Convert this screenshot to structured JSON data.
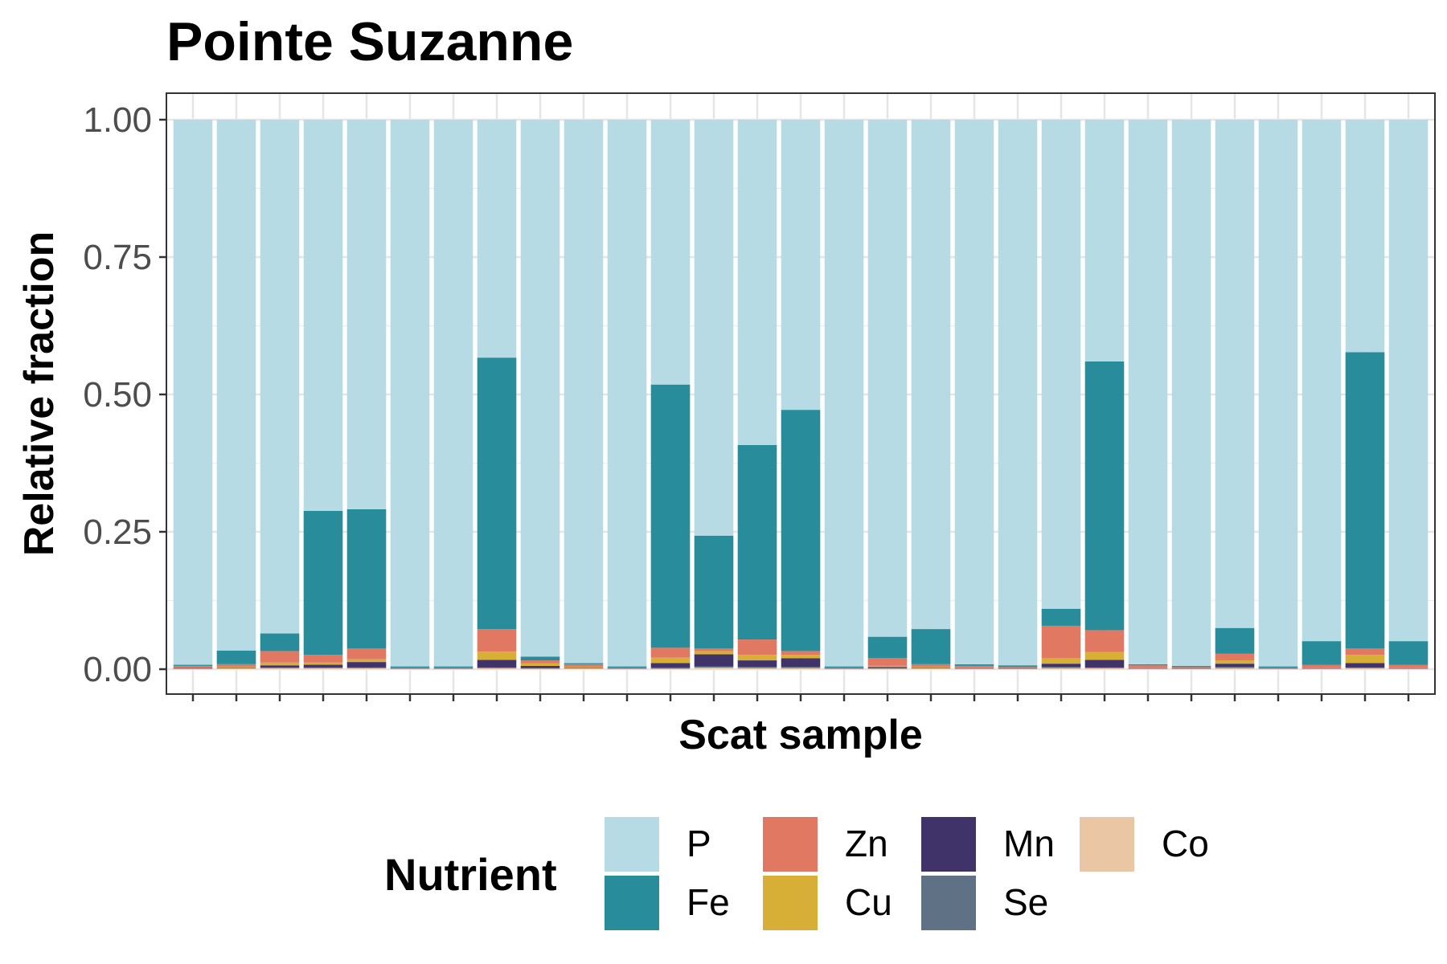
{
  "chart_data": {
    "type": "bar",
    "stacked": true,
    "title": "Pointe Suzanne",
    "xlabel": "Scat sample",
    "ylabel": "Relative fraction",
    "ylim": [
      0,
      1
    ],
    "y_ticks": [
      "0.00",
      "0.25",
      "0.50",
      "0.75",
      "1.00"
    ],
    "y_tick_values": [
      0,
      0.25,
      0.5,
      0.75,
      1
    ],
    "x_tick_labels_shown": false,
    "grid": true,
    "legend_title": "Nutrient",
    "legend_position": "bottom",
    "num_samples": 29,
    "series": [
      {
        "name": "P",
        "color": "#b6dbe5",
        "values": [
          0.992,
          0.966,
          0.935,
          0.712,
          0.709,
          0.995,
          0.995,
          0.433,
          0.977,
          0.989,
          0.995,
          0.482,
          0.757,
          0.592,
          0.528,
          0.995,
          0.941,
          0.927,
          0.991,
          0.993,
          0.89,
          0.44,
          0.991,
          0.994,
          0.925,
          0.995,
          0.949,
          0.423,
          0.949
        ]
      },
      {
        "name": "Fe",
        "color": "#288c9b",
        "values": [
          0.002,
          0.025,
          0.032,
          0.262,
          0.253,
          0.002,
          0.002,
          0.494,
          0.007,
          0.002,
          0.002,
          0.479,
          0.205,
          0.354,
          0.439,
          0.002,
          0.039,
          0.064,
          0.003,
          0.003,
          0.031,
          0.489,
          0.002,
          0.002,
          0.047,
          0.002,
          0.043,
          0.539,
          0.043
        ]
      },
      {
        "name": "Zn",
        "color": "#e07862",
        "values": [
          0.004,
          0.005,
          0.021,
          0.014,
          0.02,
          0.001,
          0.001,
          0.041,
          0.005,
          0.005,
          0.001,
          0.018,
          0.005,
          0.028,
          0.007,
          0.001,
          0.014,
          0.005,
          0.003,
          0.002,
          0.059,
          0.04,
          0.004,
          0.002,
          0.012,
          0.001,
          0.005,
          0.012,
          0.005
        ]
      },
      {
        "name": "Cu",
        "color": "#d8af36",
        "values": [
          0.0,
          0.001,
          0.005,
          0.004,
          0.005,
          0.0,
          0.0,
          0.015,
          0.005,
          0.001,
          0.0,
          0.01,
          0.006,
          0.01,
          0.006,
          0.0,
          0.002,
          0.001,
          0.001,
          0.0,
          0.01,
          0.014,
          0.001,
          0.0,
          0.006,
          0.0,
          0.001,
          0.015,
          0.001
        ]
      },
      {
        "name": "Mn",
        "color": "#40336a",
        "values": [
          0.001,
          0.001,
          0.004,
          0.005,
          0.01,
          0.001,
          0.001,
          0.014,
          0.004,
          0.001,
          0.001,
          0.008,
          0.022,
          0.012,
          0.016,
          0.001,
          0.002,
          0.001,
          0.001,
          0.001,
          0.006,
          0.014,
          0.001,
          0.001,
          0.006,
          0.001,
          0.001,
          0.008,
          0.001
        ]
      },
      {
        "name": "Se",
        "color": "#5f7184",
        "values": [
          0.0,
          0.0,
          0.001,
          0.001,
          0.001,
          0.0,
          0.0,
          0.001,
          0.001,
          0.0,
          0.0,
          0.002,
          0.002,
          0.002,
          0.002,
          0.0,
          0.001,
          0.0,
          0.0,
          0.0,
          0.002,
          0.001,
          0.0,
          0.0,
          0.002,
          0.0,
          0.0,
          0.001,
          0.0
        ]
      },
      {
        "name": "Co",
        "color": "#ebc6a5",
        "values": [
          0.001,
          0.002,
          0.002,
          0.002,
          0.002,
          0.001,
          0.001,
          0.002,
          0.001,
          0.002,
          0.001,
          0.001,
          0.003,
          0.002,
          0.002,
          0.001,
          0.001,
          0.002,
          0.001,
          0.001,
          0.002,
          0.002,
          0.001,
          0.001,
          0.002,
          0.001,
          0.001,
          0.002,
          0.001
        ]
      }
    ]
  }
}
